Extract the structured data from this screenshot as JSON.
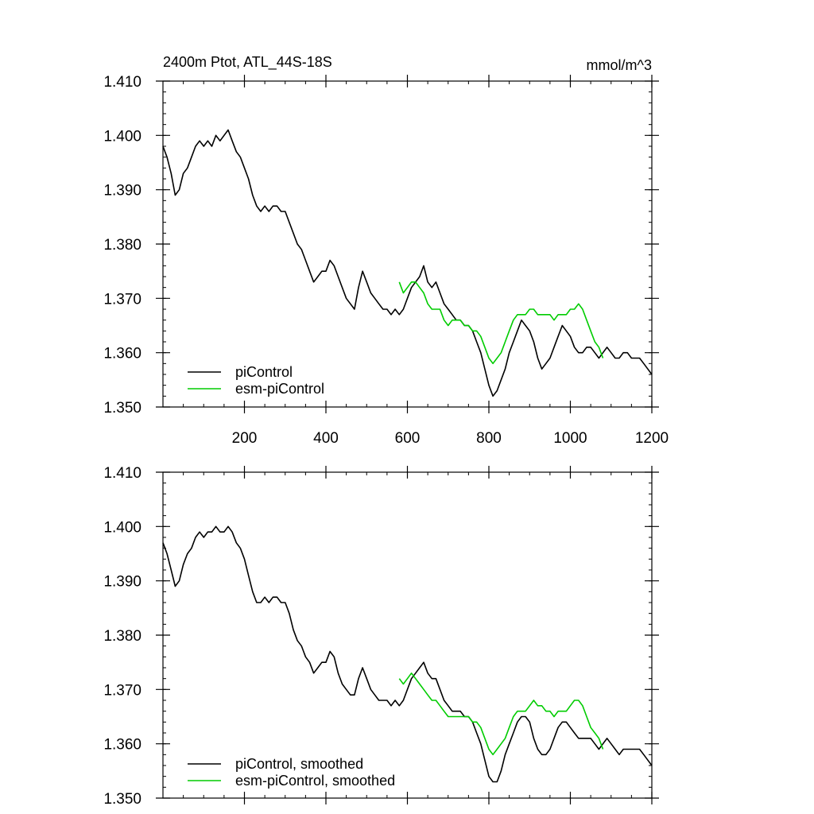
{
  "chart_data": [
    {
      "type": "line",
      "title": "2400m Ptot, ATL_44S-18S",
      "units": "mmol/m^3",
      "xlim": [
        0,
        1200
      ],
      "ylim": [
        1.35,
        1.41
      ],
      "xticks": [
        200,
        400,
        600,
        800,
        1000,
        1200
      ],
      "xtick_labels": [
        "200",
        "400",
        "600",
        "800",
        "1000",
        "1200"
      ],
      "yticks": [
        1.35,
        1.36,
        1.37,
        1.38,
        1.39,
        1.4,
        1.41
      ],
      "ytick_labels": [
        "1.350",
        "1.360",
        "1.370",
        "1.380",
        "1.390",
        "1.400",
        "1.410"
      ],
      "legend_position": "bottom-left",
      "series": [
        {
          "name": "piControl",
          "color": "#000000",
          "x": [
            0,
            10,
            20,
            30,
            40,
            50,
            60,
            70,
            80,
            90,
            100,
            110,
            120,
            130,
            140,
            150,
            160,
            170,
            180,
            190,
            200,
            210,
            220,
            230,
            240,
            250,
            260,
            270,
            280,
            290,
            300,
            310,
            320,
            330,
            340,
            350,
            360,
            370,
            380,
            390,
            400,
            410,
            420,
            430,
            440,
            450,
            460,
            470,
            480,
            490,
            500,
            510,
            520,
            530,
            540,
            550,
            560,
            570,
            580,
            590,
            600,
            610,
            620,
            630,
            640,
            650,
            660,
            670,
            680,
            690,
            700,
            710,
            720,
            730,
            740,
            750,
            760,
            770,
            780,
            790,
            800,
            810,
            820,
            830,
            840,
            850,
            860,
            870,
            880,
            890,
            900,
            910,
            920,
            930,
            940,
            950,
            960,
            970,
            980,
            990,
            1000,
            1010,
            1020,
            1030,
            1040,
            1050,
            1060,
            1070,
            1080,
            1090,
            1100,
            1110,
            1120,
            1130,
            1140,
            1150,
            1160,
            1170,
            1180,
            1190,
            1200
          ],
          "y": [
            1.398,
            1.396,
            1.393,
            1.389,
            1.39,
            1.393,
            1.394,
            1.396,
            1.398,
            1.399,
            1.398,
            1.399,
            1.398,
            1.4,
            1.399,
            1.4,
            1.401,
            1.399,
            1.397,
            1.396,
            1.394,
            1.392,
            1.389,
            1.387,
            1.386,
            1.387,
            1.386,
            1.387,
            1.387,
            1.386,
            1.386,
            1.384,
            1.382,
            1.38,
            1.379,
            1.377,
            1.375,
            1.373,
            1.374,
            1.375,
            1.375,
            1.377,
            1.376,
            1.374,
            1.372,
            1.37,
            1.369,
            1.368,
            1.372,
            1.375,
            1.373,
            1.371,
            1.37,
            1.369,
            1.368,
            1.368,
            1.367,
            1.368,
            1.367,
            1.368,
            1.37,
            1.372,
            1.373,
            1.374,
            1.376,
            1.373,
            1.372,
            1.373,
            1.371,
            1.369,
            1.368,
            1.367,
            1.366,
            1.366,
            1.365,
            1.365,
            1.364,
            1.362,
            1.36,
            1.357,
            1.354,
            1.352,
            1.353,
            1.355,
            1.357,
            1.36,
            1.362,
            1.364,
            1.366,
            1.365,
            1.364,
            1.362,
            1.359,
            1.357,
            1.358,
            1.359,
            1.361,
            1.363,
            1.365,
            1.364,
            1.363,
            1.361,
            1.36,
            1.36,
            1.361,
            1.361,
            1.36,
            1.359,
            1.36,
            1.361,
            1.36,
            1.359,
            1.359,
            1.36,
            1.36,
            1.359,
            1.359,
            1.359,
            1.358,
            1.357,
            1.356
          ]
        },
        {
          "name": "esm-piControl",
          "color": "#00cc00",
          "x": [
            580,
            590,
            600,
            610,
            620,
            630,
            640,
            650,
            660,
            670,
            680,
            690,
            700,
            710,
            720,
            730,
            740,
            750,
            760,
            770,
            780,
            790,
            800,
            810,
            820,
            830,
            840,
            850,
            860,
            870,
            880,
            890,
            900,
            910,
            920,
            930,
            940,
            950,
            960,
            970,
            980,
            990,
            1000,
            1010,
            1020,
            1030,
            1040,
            1050,
            1060,
            1070,
            1080
          ],
          "y": [
            1.373,
            1.371,
            1.372,
            1.373,
            1.373,
            1.372,
            1.371,
            1.369,
            1.368,
            1.368,
            1.368,
            1.366,
            1.365,
            1.366,
            1.366,
            1.366,
            1.365,
            1.365,
            1.364,
            1.364,
            1.363,
            1.361,
            1.359,
            1.358,
            1.359,
            1.36,
            1.362,
            1.364,
            1.366,
            1.367,
            1.367,
            1.367,
            1.368,
            1.368,
            1.367,
            1.367,
            1.367,
            1.367,
            1.366,
            1.367,
            1.367,
            1.367,
            1.368,
            1.368,
            1.369,
            1.368,
            1.366,
            1.364,
            1.362,
            1.361,
            1.359
          ]
        }
      ]
    },
    {
      "type": "line",
      "title": "",
      "units": "",
      "xlim": [
        0,
        1200
      ],
      "ylim": [
        1.35,
        1.41
      ],
      "xticks": [
        200,
        400,
        600,
        800,
        1000,
        1200
      ],
      "xtick_labels": [],
      "yticks": [
        1.35,
        1.36,
        1.37,
        1.38,
        1.39,
        1.4,
        1.41
      ],
      "ytick_labels": [
        "1.350",
        "1.360",
        "1.370",
        "1.380",
        "1.390",
        "1.400",
        "1.410"
      ],
      "legend_position": "bottom-left",
      "series": [
        {
          "name": "piControl, smoothed",
          "color": "#000000",
          "x": [
            0,
            10,
            20,
            30,
            40,
            50,
            60,
            70,
            80,
            90,
            100,
            110,
            120,
            130,
            140,
            150,
            160,
            170,
            180,
            190,
            200,
            210,
            220,
            230,
            240,
            250,
            260,
            270,
            280,
            290,
            300,
            310,
            320,
            330,
            340,
            350,
            360,
            370,
            380,
            390,
            400,
            410,
            420,
            430,
            440,
            450,
            460,
            470,
            480,
            490,
            500,
            510,
            520,
            530,
            540,
            550,
            560,
            570,
            580,
            590,
            600,
            610,
            620,
            630,
            640,
            650,
            660,
            670,
            680,
            690,
            700,
            710,
            720,
            730,
            740,
            750,
            760,
            770,
            780,
            790,
            800,
            810,
            820,
            830,
            840,
            850,
            860,
            870,
            880,
            890,
            900,
            910,
            920,
            930,
            940,
            950,
            960,
            970,
            980,
            990,
            1000,
            1010,
            1020,
            1030,
            1040,
            1050,
            1060,
            1070,
            1080,
            1090,
            1100,
            1110,
            1120,
            1130,
            1140,
            1150,
            1160,
            1170,
            1180,
            1190,
            1200
          ],
          "y": [
            1.397,
            1.395,
            1.392,
            1.389,
            1.39,
            1.393,
            1.395,
            1.396,
            1.398,
            1.399,
            1.398,
            1.399,
            1.399,
            1.4,
            1.399,
            1.399,
            1.4,
            1.399,
            1.397,
            1.396,
            1.394,
            1.391,
            1.388,
            1.386,
            1.386,
            1.387,
            1.386,
            1.387,
            1.387,
            1.386,
            1.386,
            1.384,
            1.381,
            1.379,
            1.378,
            1.376,
            1.375,
            1.373,
            1.374,
            1.375,
            1.375,
            1.377,
            1.376,
            1.373,
            1.371,
            1.37,
            1.369,
            1.369,
            1.372,
            1.374,
            1.372,
            1.37,
            1.369,
            1.368,
            1.368,
            1.368,
            1.367,
            1.368,
            1.367,
            1.368,
            1.37,
            1.372,
            1.373,
            1.374,
            1.375,
            1.373,
            1.372,
            1.372,
            1.37,
            1.368,
            1.367,
            1.366,
            1.366,
            1.366,
            1.365,
            1.365,
            1.364,
            1.362,
            1.36,
            1.357,
            1.354,
            1.353,
            1.353,
            1.355,
            1.358,
            1.36,
            1.362,
            1.364,
            1.365,
            1.365,
            1.364,
            1.361,
            1.359,
            1.358,
            1.358,
            1.359,
            1.361,
            1.363,
            1.364,
            1.364,
            1.363,
            1.362,
            1.361,
            1.361,
            1.361,
            1.361,
            1.36,
            1.359,
            1.36,
            1.361,
            1.36,
            1.359,
            1.358,
            1.359,
            1.359,
            1.359,
            1.359,
            1.359,
            1.358,
            1.357,
            1.356
          ]
        },
        {
          "name": "esm-piControl, smoothed",
          "color": "#00cc00",
          "x": [
            580,
            590,
            600,
            610,
            620,
            630,
            640,
            650,
            660,
            670,
            680,
            690,
            700,
            710,
            720,
            730,
            740,
            750,
            760,
            770,
            780,
            790,
            800,
            810,
            820,
            830,
            840,
            850,
            860,
            870,
            880,
            890,
            900,
            910,
            920,
            930,
            940,
            950,
            960,
            970,
            980,
            990,
            1000,
            1010,
            1020,
            1030,
            1040,
            1050,
            1060,
            1070,
            1080
          ],
          "y": [
            1.372,
            1.371,
            1.372,
            1.373,
            1.372,
            1.371,
            1.37,
            1.369,
            1.368,
            1.368,
            1.367,
            1.366,
            1.365,
            1.365,
            1.365,
            1.365,
            1.365,
            1.365,
            1.364,
            1.364,
            1.363,
            1.361,
            1.359,
            1.358,
            1.359,
            1.36,
            1.361,
            1.363,
            1.365,
            1.366,
            1.366,
            1.366,
            1.367,
            1.368,
            1.367,
            1.367,
            1.366,
            1.366,
            1.365,
            1.366,
            1.366,
            1.366,
            1.367,
            1.368,
            1.368,
            1.367,
            1.365,
            1.363,
            1.362,
            1.361,
            1.359
          ]
        }
      ]
    }
  ]
}
